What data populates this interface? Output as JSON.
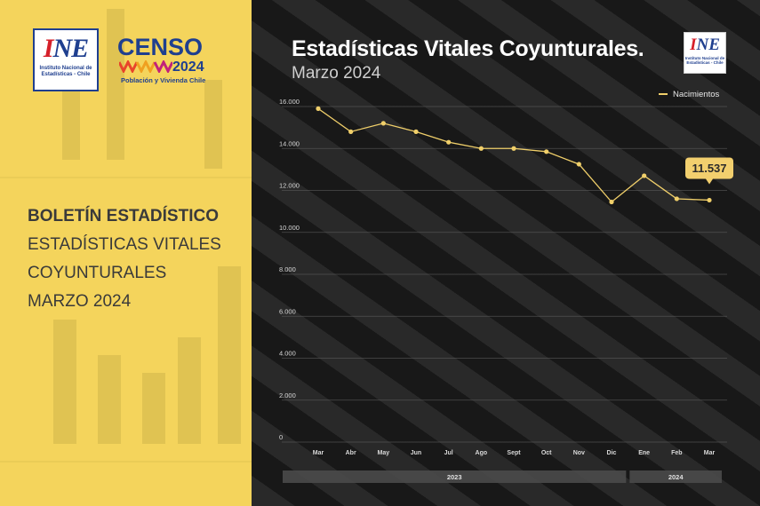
{
  "left": {
    "ine_logo": {
      "mark": "INE",
      "caption": "Instituto Nacional de Estadísticas - Chile"
    },
    "censo_logo": {
      "word": "CENSO",
      "year": "2024",
      "tagline": "Población y Vivienda Chile"
    },
    "boletin": {
      "line1": "BOLETÍN ESTADÍSTICO",
      "line2": "ESTADÍSTICAS VITALES",
      "line3": "COYUNTURALES",
      "line4": "MARZO 2024"
    }
  },
  "header": {
    "title": "Estadísticas Vitales Coyunturales.",
    "subtitle": "Marzo 2024",
    "logo_mark": "INE",
    "logo_caption": "Instituto Nacional de Estadísticas - Chile"
  },
  "colors": {
    "panel_yellow": "#f4d45c",
    "line": "#f0cf6a",
    "callout": "#f2cf6e",
    "brand_blue": "#1f3f8f",
    "brand_red": "#d6202a"
  },
  "chart_data": {
    "type": "line",
    "categories": [
      "Mar",
      "Abr",
      "May",
      "Jun",
      "Jul",
      "Ago",
      "Sept",
      "Oct",
      "Nov",
      "Dic",
      "Ene",
      "Feb",
      "Mar"
    ],
    "series": [
      {
        "name": "Nacimientos",
        "values": [
          15900,
          14800,
          15200,
          14800,
          14300,
          14000,
          14000,
          13850,
          13250,
          11450,
          12700,
          11600,
          11537
        ]
      }
    ],
    "ylim": [
      0,
      16000
    ],
    "yticks": [
      0,
      2000,
      4000,
      6000,
      8000,
      10000,
      12000,
      14000,
      16000
    ],
    "ytick_labels": [
      "0",
      "2.000",
      "4.000",
      "6.000",
      "8.000",
      "10.000",
      "12.000",
      "14.000",
      "16.000"
    ],
    "year_groups": [
      {
        "label": "2023",
        "start": 0,
        "end": 9
      },
      {
        "label": "2024",
        "start": 10,
        "end": 12
      }
    ],
    "callout": {
      "index": 12,
      "label": "11.537"
    },
    "legend_position": "top-right",
    "grid": true
  }
}
